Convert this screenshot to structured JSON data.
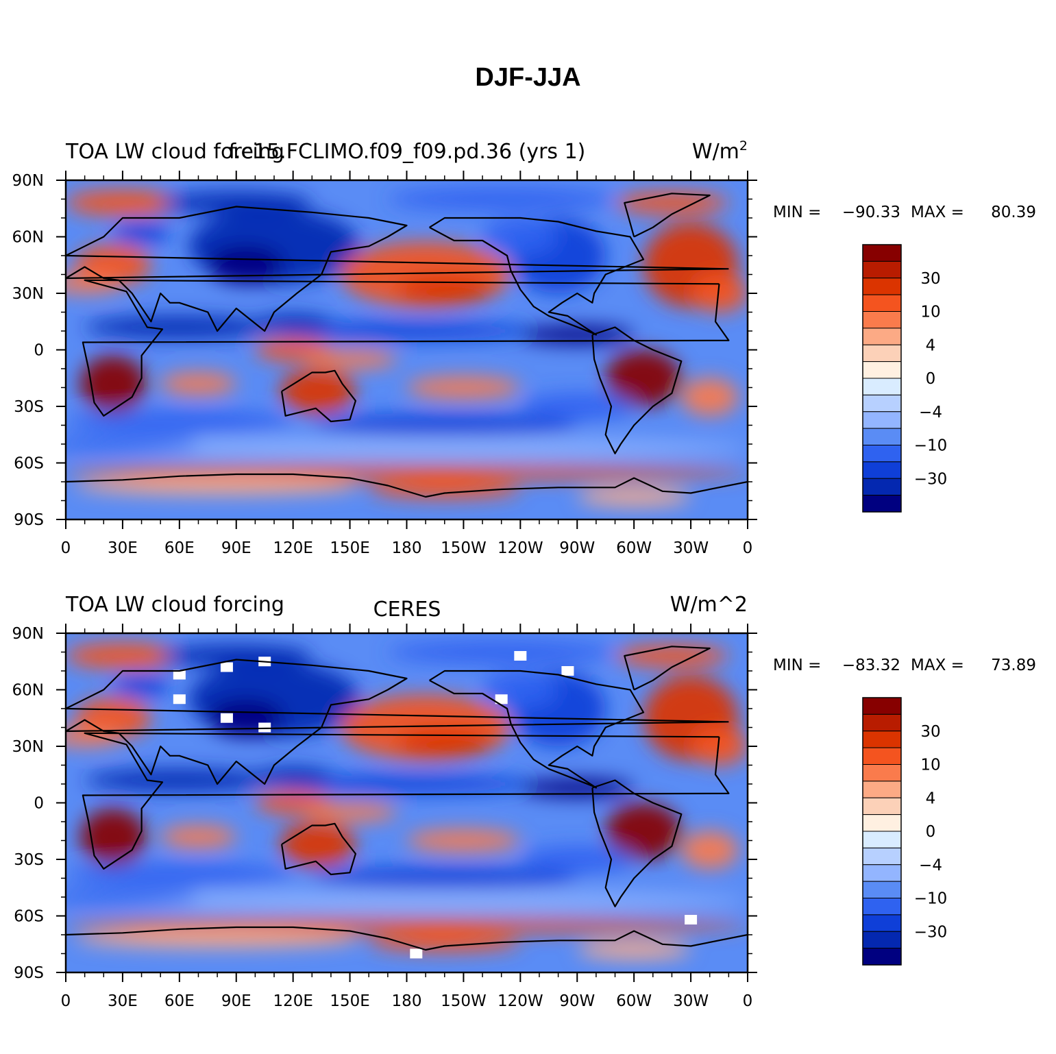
{
  "title": "DJF-JJA",
  "panels": [
    {
      "left_title": "TOA LW cloud forcing",
      "center_title": "f.e15.FCLIMO.f09_f09.pd.36 (yrs 1)",
      "units_base": "W/m",
      "units_sup": "2",
      "min_label": "MIN =",
      "min_value": "−90.33",
      "max_label": "MAX =",
      "max_value": "80.39",
      "missing_data": false
    },
    {
      "left_title": "TOA LW cloud forcing",
      "center_title": "CERES",
      "units_base": "W/m^2",
      "units_sup": "",
      "min_label": "MIN =",
      "min_value": "−83.32",
      "max_label": "MAX =",
      "max_value": "73.89",
      "missing_data": true
    }
  ],
  "axes": {
    "lat_labels": [
      "90N",
      "60N",
      "30N",
      "0",
      "30S",
      "60S",
      "90S"
    ],
    "lon_labels": [
      "0",
      "30E",
      "60E",
      "90E",
      "120E",
      "150E",
      "180",
      "150W",
      "120W",
      "90W",
      "60W",
      "30W",
      "0"
    ]
  },
  "colorbar": {
    "labels": [
      "30",
      "10",
      "4",
      "0",
      "−4",
      "−10",
      "−30"
    ],
    "colors": [
      "#870000",
      "#b81c00",
      "#db3400",
      "#f4541f",
      "#fa7b4c",
      "#fcaa85",
      "#fcd1b8",
      "#fff0e1",
      "#d9ecff",
      "#b7d0ff",
      "#93b5ff",
      "#5a8cf5",
      "#2f62f0",
      "#0f3fd8",
      "#0428b0",
      "#000080"
    ]
  },
  "colors": {
    "ocean_base": "#5a8cf5",
    "coastline": "#000000",
    "missing": "#ffffff"
  }
}
